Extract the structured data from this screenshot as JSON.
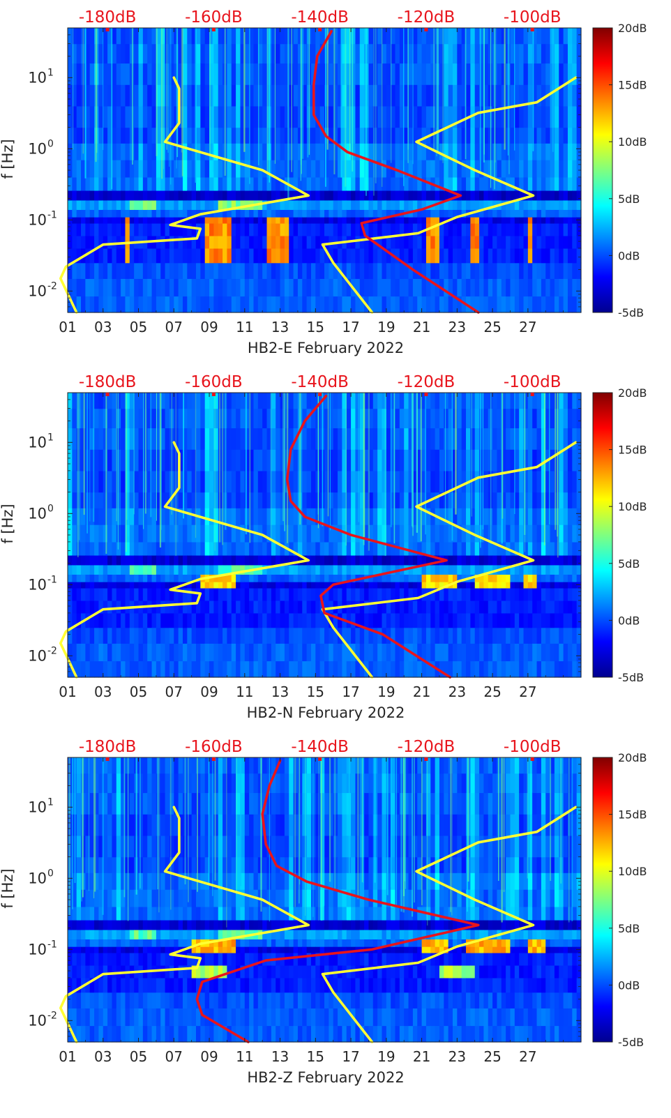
{
  "chart_data": [
    {
      "type": "heatmap",
      "xlabel": "HB2-E February 2022",
      "ylabel": "f [Hz]",
      "x_tick_labels": [
        "01",
        "03",
        "05",
        "07",
        "09",
        "11",
        "13",
        "15",
        "17",
        "19",
        "21",
        "23",
        "25",
        "27"
      ],
      "x_ticks_day": [
        1,
        3,
        5,
        7,
        9,
        11,
        13,
        15,
        17,
        19,
        21,
        23,
        25,
        27
      ],
      "xlim": [
        1,
        30
      ],
      "ylim": [
        0.005,
        50
      ],
      "yscale": "log",
      "y_tick_values": [
        0.01,
        0.1,
        1,
        10
      ],
      "y_tick_labels": [
        "10^-2",
        "10^-1",
        "10^0",
        "10^1"
      ],
      "top_axis_labels": [
        "-180dB",
        "-160dB",
        "-140dB",
        "-120dB",
        "-100dB"
      ],
      "top_axis_days": [
        3.25,
        9.25,
        15.25,
        21.25,
        27.25
      ],
      "top_axis_color": "#e8141c",
      "colorbar": {
        "min": -5,
        "max": 20,
        "labels": [
          "20dB",
          "15dB",
          "10dB",
          "5dB",
          "0dB",
          "-5dB"
        ],
        "values": [
          20,
          15,
          10,
          5,
          0,
          -5
        ],
        "colormap": "jet"
      },
      "band_peaks": [
        {
          "f_lo": 0.02,
          "f_hi": 0.11,
          "days": [
            [
              4.3,
              4.6
            ],
            [
              8.8,
              10.2
            ],
            [
              12.2,
              13.6
            ],
            [
              21.3,
              21.9
            ],
            [
              23.8,
              24.3
            ],
            [
              26.9,
              27.2
            ]
          ],
          "level": 15
        },
        {
          "f_lo": 0.14,
          "f_hi": 0.19,
          "days": [
            [
              4.5,
              6.0
            ],
            [
              9.5,
              12.0
            ]
          ],
          "level": 9
        }
      ],
      "series": [
        {
          "color": "#ffff33",
          "x": [
            7.0,
            7.3,
            7.3,
            6.5,
            12.0,
            14.6,
            8.5,
            6.8,
            8.5,
            8.3,
            3.0,
            0.9,
            0.6,
            1.5
          ],
          "y": [
            10,
            7,
            2.3,
            1.25,
            0.5,
            0.22,
            0.12,
            0.085,
            0.075,
            0.055,
            0.045,
            0.022,
            0.015,
            0.005
          ]
        },
        {
          "color": "#ffff33",
          "x": [
            29.7,
            27.5,
            24.2,
            20.7,
            24.0,
            27.3,
            23.0,
            20.8,
            15.4,
            16.0,
            18.2
          ],
          "y": [
            10,
            4.5,
            3.2,
            1.25,
            0.5,
            0.22,
            0.11,
            0.065,
            0.045,
            0.025,
            0.005
          ]
        },
        {
          "color": "#e8141c",
          "x": [
            15.9,
            15.1,
            14.9,
            14.9,
            15.6,
            16.8,
            19.6,
            23.2,
            21.0,
            17.6,
            17.8,
            20.5,
            24.2
          ],
          "y": [
            45,
            20,
            8,
            3.0,
            1.5,
            0.9,
            0.5,
            0.22,
            0.14,
            0.09,
            0.06,
            0.02,
            0.005
          ]
        }
      ]
    },
    {
      "type": "heatmap",
      "xlabel": "HB2-N February 2022",
      "ylabel": "f [Hz]",
      "x_tick_labels": [
        "01",
        "03",
        "05",
        "07",
        "09",
        "11",
        "13",
        "15",
        "17",
        "19",
        "21",
        "23",
        "25",
        "27"
      ],
      "x_ticks_day": [
        1,
        3,
        5,
        7,
        9,
        11,
        13,
        15,
        17,
        19,
        21,
        23,
        25,
        27
      ],
      "xlim": [
        1,
        30
      ],
      "ylim": [
        0.005,
        50
      ],
      "yscale": "log",
      "y_tick_values": [
        0.01,
        0.1,
        1,
        10
      ],
      "y_tick_labels": [
        "10^-2",
        "10^-1",
        "10^0",
        "10^1"
      ],
      "top_axis_labels": [
        "-180dB",
        "-160dB",
        "-140dB",
        "-120dB",
        "-100dB"
      ],
      "top_axis_days": [
        3.25,
        9.25,
        15.25,
        21.25,
        27.25
      ],
      "top_axis_color": "#e8141c",
      "colorbar": {
        "min": -5,
        "max": 20,
        "labels": [
          "20dB",
          "15dB",
          "10dB",
          "5dB",
          "0dB",
          "-5dB"
        ],
        "values": [
          20,
          15,
          10,
          5,
          0,
          -5
        ],
        "colormap": "jet"
      },
      "band_peaks": [
        {
          "f_lo": 0.09,
          "f_hi": 0.13,
          "days": [
            [
              8.5,
              10.5
            ],
            [
              21.0,
              23.0
            ],
            [
              24.0,
              26.0
            ],
            [
              26.8,
              27.5
            ]
          ],
          "level": 13
        },
        {
          "f_lo": 0.14,
          "f_hi": 0.19,
          "days": [
            [
              4.5,
              6.0
            ],
            [
              9.5,
              12.0
            ]
          ],
          "level": 8
        }
      ],
      "series": [
        {
          "color": "#ffff33",
          "x": [
            7.0,
            7.3,
            7.3,
            6.5,
            12.0,
            14.6,
            8.5,
            6.8,
            8.5,
            8.3,
            3.0,
            0.9,
            0.6,
            1.5
          ],
          "y": [
            10,
            7,
            2.3,
            1.25,
            0.5,
            0.22,
            0.12,
            0.085,
            0.075,
            0.055,
            0.045,
            0.022,
            0.015,
            0.005
          ]
        },
        {
          "color": "#ffff33",
          "x": [
            29.7,
            27.5,
            24.2,
            20.7,
            24.0,
            27.3,
            23.0,
            20.8,
            15.4,
            16.0,
            18.2
          ],
          "y": [
            10,
            4.5,
            3.2,
            1.25,
            0.5,
            0.22,
            0.11,
            0.065,
            0.045,
            0.025,
            0.005
          ]
        },
        {
          "color": "#e8141c",
          "x": [
            15.6,
            14.4,
            13.6,
            13.4,
            13.6,
            14.4,
            17.0,
            22.4,
            16.0,
            15.3,
            15.5,
            18.8,
            22.6
          ],
          "y": [
            45,
            20,
            8,
            3.0,
            1.5,
            0.9,
            0.5,
            0.22,
            0.1,
            0.07,
            0.04,
            0.02,
            0.005
          ]
        }
      ]
    },
    {
      "type": "heatmap",
      "xlabel": "HB2-Z February 2022",
      "ylabel": "f [Hz]",
      "x_tick_labels": [
        "01",
        "03",
        "05",
        "07",
        "09",
        "11",
        "13",
        "15",
        "17",
        "19",
        "21",
        "23",
        "25",
        "27"
      ],
      "x_ticks_day": [
        1,
        3,
        5,
        7,
        9,
        11,
        13,
        15,
        17,
        19,
        21,
        23,
        25,
        27
      ],
      "xlim": [
        1,
        30
      ],
      "ylim": [
        0.005,
        50
      ],
      "yscale": "log",
      "y_tick_values": [
        0.01,
        0.1,
        1,
        10
      ],
      "y_tick_labels": [
        "10^-2",
        "10^-1",
        "10^0",
        "10^1"
      ],
      "top_axis_labels": [
        "-180dB",
        "-160dB",
        "-140dB",
        "-120dB",
        "-100dB"
      ],
      "top_axis_days": [
        3.25,
        9.25,
        15.25,
        21.25,
        27.25
      ],
      "top_axis_color": "#e8141c",
      "colorbar": {
        "min": -5,
        "max": 20,
        "labels": [
          "20dB",
          "15dB",
          "10dB",
          "5dB",
          "0dB",
          "-5dB"
        ],
        "values": [
          20,
          15,
          10,
          5,
          0,
          -5
        ],
        "colormap": "jet"
      },
      "band_peaks": [
        {
          "f_lo": 0.09,
          "f_hi": 0.13,
          "days": [
            [
              8.0,
              10.5
            ],
            [
              21.0,
              22.5
            ],
            [
              23.5,
              26.0
            ],
            [
              27.0,
              28.0
            ]
          ],
          "level": 14
        },
        {
          "f_lo": 0.04,
          "f_hi": 0.06,
          "days": [
            [
              8.0,
              10.0
            ],
            [
              22.0,
              24.0
            ]
          ],
          "level": 10
        },
        {
          "f_lo": 0.14,
          "f_hi": 0.19,
          "days": [
            [
              4.5,
              6.0
            ],
            [
              9.5,
              12.0
            ]
          ],
          "level": 8
        }
      ],
      "series": [
        {
          "color": "#ffff33",
          "x": [
            7.0,
            7.3,
            7.3,
            6.5,
            12.0,
            14.6,
            8.5,
            6.8,
            8.5,
            8.3,
            3.0,
            0.9,
            0.6,
            1.5
          ],
          "y": [
            10,
            7,
            2.3,
            1.25,
            0.5,
            0.22,
            0.12,
            0.085,
            0.075,
            0.055,
            0.045,
            0.022,
            0.015,
            0.005
          ]
        },
        {
          "color": "#ffff33",
          "x": [
            29.7,
            27.5,
            24.2,
            20.7,
            24.0,
            27.3,
            23.0,
            20.8,
            15.4,
            16.0,
            18.2
          ],
          "y": [
            10,
            4.5,
            3.2,
            1.25,
            0.5,
            0.22,
            0.11,
            0.065,
            0.045,
            0.025,
            0.005
          ]
        },
        {
          "color": "#e8141c",
          "x": [
            13.0,
            12.4,
            12.0,
            12.2,
            12.8,
            14.5,
            18.0,
            24.2,
            18.2,
            12.2,
            8.6,
            8.3,
            8.6,
            11.2
          ],
          "y": [
            45,
            20,
            8,
            3.0,
            1.5,
            0.9,
            0.5,
            0.22,
            0.1,
            0.07,
            0.035,
            0.02,
            0.012,
            0.005
          ]
        }
      ]
    }
  ]
}
